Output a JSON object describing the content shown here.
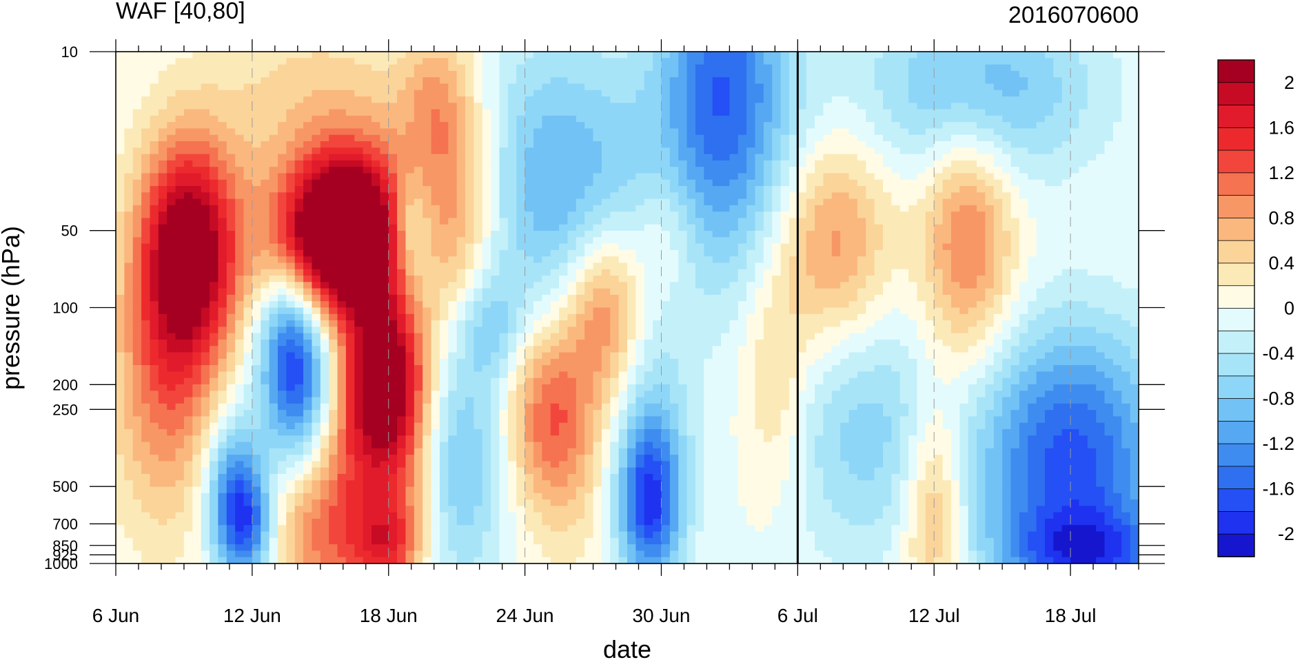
{
  "chart_data": {
    "type": "heatmap",
    "title": "WAF [40,80]",
    "subtitle": "2016070600",
    "xlabel": "date",
    "ylabel": "pressure (hPa)",
    "x_tick_labels": [
      "6 Jun",
      "12 Jun",
      "18 Jun",
      "24 Jun",
      "30 Jun",
      "6 Jul",
      "12 Jul",
      "18 Jul"
    ],
    "x_tick_days": [
      0,
      6,
      12,
      18,
      24,
      30,
      36,
      42
    ],
    "x_range_days": [
      0,
      45
    ],
    "y_scale": "log",
    "y_reversed": true,
    "y_ticks": [
      10,
      50,
      100,
      200,
      250,
      500,
      700,
      850,
      925,
      1000
    ],
    "y_tick_labels": [
      "10",
      "50",
      "100",
      "200",
      "250",
      "500",
      "700",
      "850",
      "925",
      "1000"
    ],
    "y_range": [
      10,
      1000
    ],
    "reference_line_day": 30,
    "colorbar": {
      "levels": [
        -2.2,
        -2.0,
        -1.8,
        -1.6,
        -1.4,
        -1.2,
        -1.0,
        -0.8,
        -0.6,
        -0.4,
        -0.2,
        0.0,
        0.2,
        0.4,
        0.6,
        0.8,
        1.0,
        1.2,
        1.4,
        1.6,
        1.8,
        2.0,
        2.2
      ],
      "colors": [
        "#1616cf",
        "#1e32f0",
        "#2450f5",
        "#2e70f0",
        "#3f8cf0",
        "#56a8f2",
        "#72c2f5",
        "#8ed6f7",
        "#a8e4f8",
        "#c4f0fa",
        "#e4fbfd",
        "#fffbe5",
        "#fbeab8",
        "#fbd49a",
        "#fab87e",
        "#f89766",
        "#f57350",
        "#f2463d",
        "#ec2a2e",
        "#e11b2b",
        "#c70b25",
        "#a50021"
      ],
      "labels": [
        "2",
        "1.6",
        "1.2",
        "0.8",
        "0.4",
        "0",
        "-0.4",
        "-0.8",
        "-1.2",
        "-1.6",
        "-2"
      ],
      "label_values": [
        2.0,
        1.6,
        1.2,
        0.8,
        0.4,
        0.0,
        -0.4,
        -0.8,
        -1.2,
        -1.6,
        -2.0
      ]
    },
    "field_blobs": [
      {
        "day": 3.2,
        "p": 60,
        "amp": 2.3,
        "sday": 1.5,
        "slog": 0.3
      },
      {
        "day": 2.2,
        "p": 200,
        "amp": 1.0,
        "sday": 1.7,
        "slog": 0.4
      },
      {
        "day": 9.0,
        "p": 60,
        "amp": 1.0,
        "sday": 2.0,
        "slog": 0.2
      },
      {
        "day": 10.0,
        "p": 25,
        "amp": 0.5,
        "sday": 4.0,
        "slog": 0.3
      },
      {
        "day": 9.5,
        "p": 1000,
        "amp": 0.4,
        "sday": 2.0,
        "slog": 0.2
      },
      {
        "day": 8.0,
        "p": 700,
        "amp": 0.3,
        "sday": 1.5,
        "slog": 0.2
      },
      {
        "day": 10.2,
        "p": 40,
        "amp": 0.4,
        "sday": 2.0,
        "slog": 0.2
      },
      {
        "day": 8.0,
        "p": 12,
        "amp": 0.2,
        "sday": 3.0,
        "slog": 0.2
      },
      {
        "day": 5.2,
        "p": 550,
        "amp": -1.5,
        "sday": 0.9,
        "slog": 0.22
      },
      {
        "day": 6.0,
        "p": 730,
        "amp": -1.0,
        "sday": 0.8,
        "slog": 0.15
      },
      {
        "day": 8.0,
        "p": 200,
        "amp": -1.6,
        "sday": 1.1,
        "slog": 0.25
      },
      {
        "day": 7.5,
        "p": 120,
        "amp": -0.6,
        "sday": 1.0,
        "slog": 0.2
      },
      {
        "day": 10.0,
        "p": 50,
        "amp": 2.0,
        "sday": 1.5,
        "slog": 0.2
      },
      {
        "day": 11.5,
        "p": 150,
        "amp": 1.3,
        "sday": 1.3,
        "slog": 0.35
      },
      {
        "day": 12.2,
        "p": 200,
        "amp": 1.3,
        "sday": 1.2,
        "slog": 0.2
      },
      {
        "day": 10.5,
        "p": 500,
        "amp": 0.9,
        "sday": 2.0,
        "slog": 0.3
      },
      {
        "day": 12.0,
        "p": 850,
        "amp": 0.9,
        "sday": 1.0,
        "slog": 0.12
      },
      {
        "day": 13.0,
        "p": 50,
        "amp": -0.7,
        "sday": 0.6,
        "slog": 0.15
      },
      {
        "day": 15.0,
        "p": 40,
        "amp": 0.8,
        "sday": 1.2,
        "slog": 0.35
      },
      {
        "day": 14.0,
        "p": 15,
        "amp": 0.5,
        "sday": 1.0,
        "slog": 0.2
      },
      {
        "day": 13.0,
        "p": 500,
        "amp": 0.4,
        "sday": 1.0,
        "slog": 0.2
      },
      {
        "day": 16.5,
        "p": 120,
        "amp": -0.6,
        "sday": 1.0,
        "slog": 0.15
      },
      {
        "day": 15.0,
        "p": 400,
        "amp": -0.9,
        "sday": 1.5,
        "slog": 0.35
      },
      {
        "day": 19.0,
        "p": 30,
        "amp": -0.8,
        "sday": 2.5,
        "slog": 0.4
      },
      {
        "day": 22.0,
        "p": 40,
        "amp": -0.4,
        "sday": 3.0,
        "slog": 0.35
      },
      {
        "day": 21.5,
        "p": 100,
        "amp": 1.2,
        "sday": 1.2,
        "slog": 0.25
      },
      {
        "day": 19.0,
        "p": 250,
        "amp": 1.0,
        "sday": 1.3,
        "slog": 0.25
      },
      {
        "day": 20.0,
        "p": 400,
        "amp": 0.4,
        "sday": 1.5,
        "slog": 0.3
      },
      {
        "day": 23.5,
        "p": 600,
        "amp": -1.6,
        "sday": 1.0,
        "slog": 0.22
      },
      {
        "day": 23.5,
        "p": 300,
        "amp": -0.6,
        "sday": 1.3,
        "slog": 0.3
      },
      {
        "day": 26.5,
        "p": 10,
        "amp": -1.0,
        "sday": 1.8,
        "slog": 0.5
      },
      {
        "day": 27.5,
        "p": 20,
        "amp": -0.7,
        "sday": 2.5,
        "slog": 0.4
      },
      {
        "day": 24.2,
        "p": 50,
        "amp": 0.5,
        "sday": 1.0,
        "slog": 0.2
      },
      {
        "day": 29.0,
        "p": 200,
        "amp": 0.5,
        "sday": 1.0,
        "slog": 0.3
      },
      {
        "day": 31.5,
        "p": 55,
        "amp": 1.0,
        "sday": 1.8,
        "slog": 0.3
      },
      {
        "day": 37.5,
        "p": 55,
        "amp": 1.1,
        "sday": 1.4,
        "slog": 0.35
      },
      {
        "day": 36.0,
        "p": 600,
        "amp": 0.9,
        "sday": 1.0,
        "slog": 0.3
      },
      {
        "day": 33.0,
        "p": 300,
        "amp": -0.7,
        "sday": 2.5,
        "slog": 0.35
      },
      {
        "day": 38.0,
        "p": 14,
        "amp": -1.0,
        "sday": 3.5,
        "slog": 0.25
      },
      {
        "day": 42.0,
        "p": 600,
        "amp": -1.2,
        "sday": 3.0,
        "slog": 0.35
      },
      {
        "day": 43.0,
        "p": 920,
        "amp": -1.0,
        "sday": 2.5,
        "slog": 0.12
      },
      {
        "day": 42.0,
        "p": 250,
        "amp": -0.8,
        "sday": 3.0,
        "slog": 0.3
      }
    ]
  }
}
